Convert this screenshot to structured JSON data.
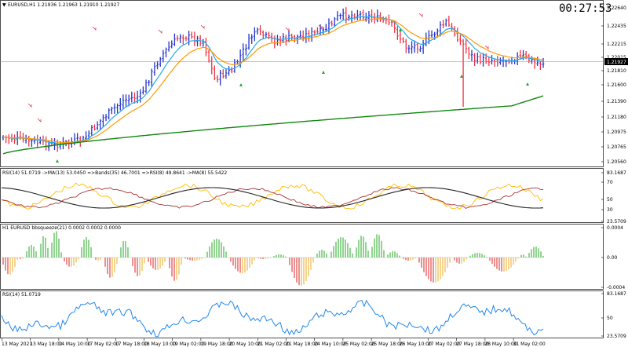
{
  "colors": {
    "bull": "#2233cc",
    "bear": "#ee3344",
    "ma_fast": "#22aaee",
    "ma_slow": "#ff9900",
    "ma_long": "#118811",
    "timer": "#ee2222",
    "rsi_yellow": "#ffbb00",
    "rsi_brown": "#aa3333",
    "rsi_black": "#222222",
    "rsi_blue": "#2288ee",
    "sq_green": "#22aa22",
    "sq_red": "#dd2222",
    "sq_yellow": "#eeaa22",
    "last_box": "#000000"
  },
  "main": {
    "symbol_label": "EURUSD,H1  1.21936 1.21963 1.21910 1.21927",
    "timer": "00:27:53",
    "price_labels": [
      "1.22640",
      "1.22435",
      "1.22215",
      "1.22015",
      "1.21810",
      "1.21600",
      "1.21390",
      "1.21180",
      "1.20975",
      "1.20765",
      "1.20560"
    ],
    "last_price": "1.21927"
  },
  "rsi_panel": {
    "label": "RSI(14) 51.0719  ->MA(13) 53.0450  =>Bands(35) 46.7001  =>RSI(8) 49.8641  ->MA(8) 55.5422",
    "scale": [
      "83.1687",
      "70",
      "50",
      "30",
      "23.5709"
    ]
  },
  "squeeze_panel": {
    "label": "H1  EURUSD bbsqueeze(21) 0.0002 0.0002 0.0000",
    "scale": [
      "0.0004",
      "0.00",
      "-0.0004"
    ]
  },
  "rsi2_panel": {
    "label": "RSI(14) 51.0719",
    "scale": [
      "83.1687",
      "50",
      "23.5709"
    ]
  },
  "time_axis": [
    "13 May 2021",
    "13 May 18:00",
    "14 May 10:00",
    "17 May 02:00",
    "17 May 18:00",
    "18 May 10:00",
    "19 May 02:00",
    "19 May 18:00",
    "20 May 10:00",
    "21 May 02:00",
    "21 May 18:00",
    "24 May 10:00",
    "25 May 02:00",
    "25 May 18:00",
    "26 May 10:00",
    "27 May 02:00",
    "27 May 18:00",
    "28 May 10:00",
    "31 May 02:00"
  ]
}
